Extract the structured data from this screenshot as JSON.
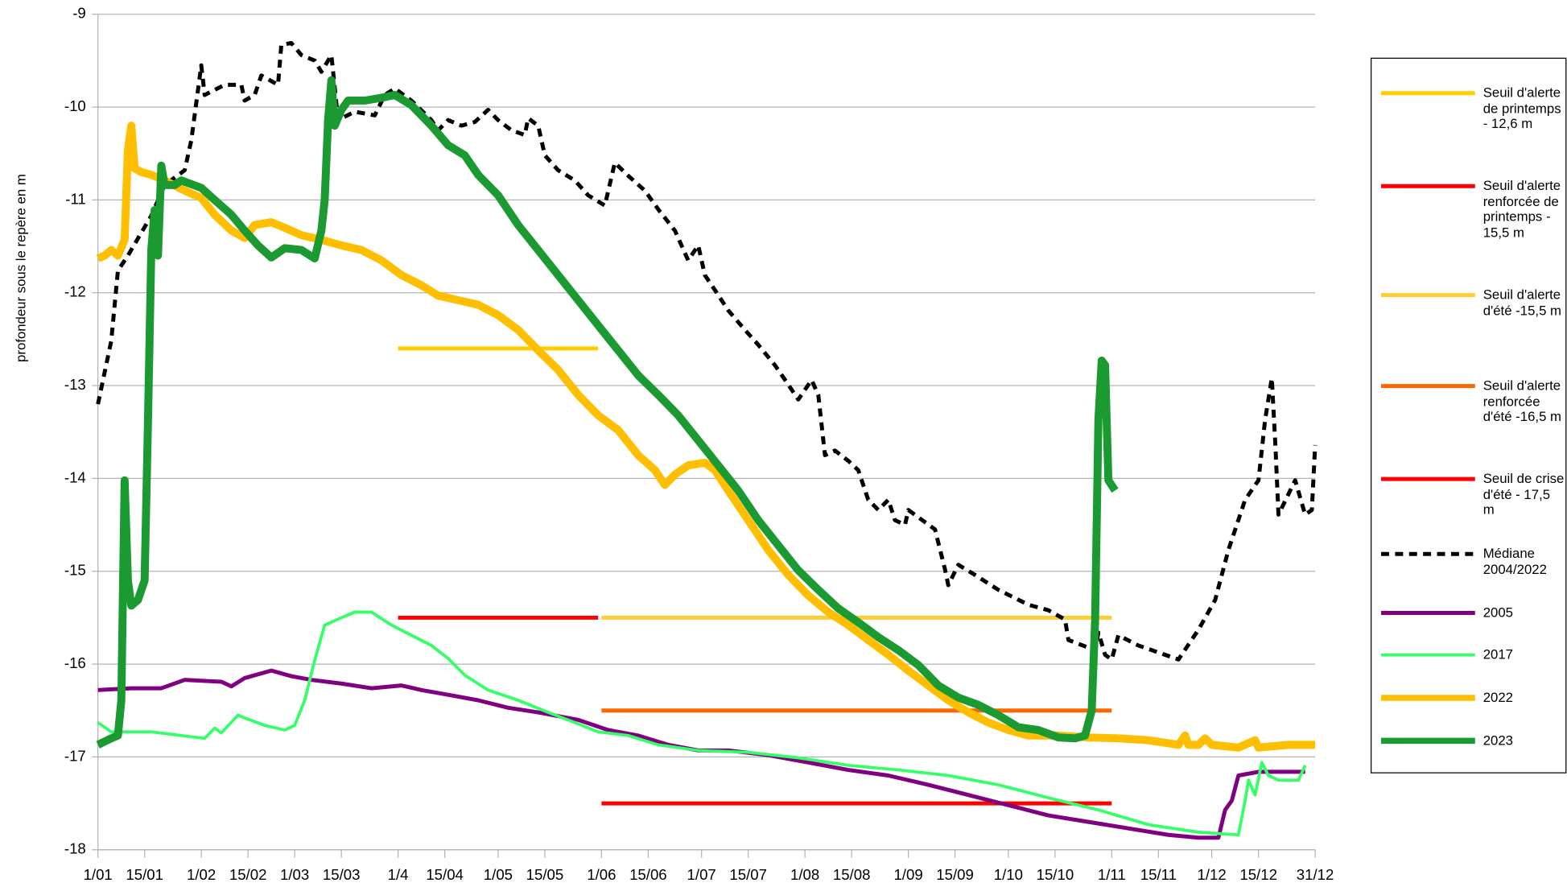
{
  "chart_data": {
    "type": "line",
    "y_label": "profondeur sous le repère en m",
    "xlim": [
      0,
      365
    ],
    "xticks": [
      {
        "value": 0,
        "label": "1/01"
      },
      {
        "value": 14,
        "label": "15/01"
      },
      {
        "value": 31,
        "label": "1/02"
      },
      {
        "value": 45,
        "label": "15/02"
      },
      {
        "value": 59,
        "label": "1/03"
      },
      {
        "value": 73,
        "label": "15/03"
      },
      {
        "value": 90,
        "label": "1/4"
      },
      {
        "value": 104,
        "label": "15/04"
      },
      {
        "value": 120,
        "label": "1/05"
      },
      {
        "value": 134,
        "label": "15/05"
      },
      {
        "value": 151,
        "label": "1/06"
      },
      {
        "value": 165,
        "label": "15/06"
      },
      {
        "value": 181,
        "label": "1/07"
      },
      {
        "value": 195,
        "label": "15/07"
      },
      {
        "value": 212,
        "label": "1/08"
      },
      {
        "value": 226,
        "label": "15/08"
      },
      {
        "value": 243,
        "label": "1/09"
      },
      {
        "value": 257,
        "label": "15/09"
      },
      {
        "value": 273,
        "label": "1/10"
      },
      {
        "value": 287,
        "label": "15/10"
      },
      {
        "value": 304,
        "label": "1/11"
      },
      {
        "value": 318,
        "label": "15/11"
      },
      {
        "value": 334,
        "label": "1/12"
      },
      {
        "value": 348,
        "label": "15/12"
      },
      {
        "value": 365,
        "label": "31/12"
      }
    ],
    "ylim": [
      -18,
      -9
    ],
    "yticks": [
      -18,
      -17,
      -16,
      -15,
      -14,
      -13,
      -12,
      -11,
      -10,
      -9
    ],
    "grid": true,
    "legend": "right",
    "series": [
      {
        "name": "Seuil d'alerte de printemps - 12,6 m",
        "color": "#ffcc00",
        "width": 4,
        "x": [
          90,
          150
        ],
        "values": [
          -12.6,
          -12.6
        ]
      },
      {
        "name": "Seuil d'alerte renforcée de printemps - 15,5 m",
        "color": "#ff0000",
        "width": 4,
        "x": [
          90,
          150
        ],
        "values": [
          -15.5,
          -15.5
        ]
      },
      {
        "name": "Seuil d'alerte d'été -15,5 m",
        "color": "#ffcc33",
        "width": 4,
        "x": [
          151,
          304
        ],
        "values": [
          -15.5,
          -15.5
        ]
      },
      {
        "name": "Seuil d'alerte renforcée d'été -16,5 m",
        "color": "#ff6600",
        "width": 4,
        "x": [
          151,
          304
        ],
        "values": [
          -16.5,
          -16.5
        ]
      },
      {
        "name": "Seuil de crise d'été - 17,5 m",
        "color": "#ff0000",
        "width": 4,
        "x": [
          151,
          304
        ],
        "values": [
          -17.5,
          -17.5
        ]
      },
      {
        "name": "Médiane 2004/2022",
        "color": "#000000",
        "width": 4,
        "dashed": true,
        "x": [
          0,
          4,
          6,
          9,
          16,
          20,
          26,
          28,
          31,
          32,
          38,
          43,
          44,
          47,
          49,
          54,
          55,
          58,
          61,
          65,
          67,
          70,
          72,
          77,
          83,
          86,
          89,
          94,
          100,
          102,
          105,
          109,
          113,
          117,
          120,
          124,
          128,
          129,
          132,
          134,
          138,
          143,
          147,
          152,
          155,
          159,
          164,
          168,
          173,
          177,
          180,
          182,
          185,
          189,
          194,
          198,
          203,
          207,
          210,
          214,
          216,
          218,
          221,
          225,
          228,
          231,
          234,
          237,
          239,
          242,
          243,
          251,
          254,
          255,
          258,
          263,
          270,
          279,
          285,
          290,
          291,
          299,
          300,
          302,
          304,
          306,
          312,
          320,
          324,
          330,
          335,
          339,
          344,
          348,
          350,
          352,
          353,
          354,
          359,
          362,
          364,
          365
        ],
        "values": [
          -13.2,
          -12.52,
          -11.76,
          -11.6,
          -11.17,
          -10.84,
          -10.68,
          -10.36,
          -9.55,
          -9.87,
          -9.76,
          -9.76,
          -9.93,
          -9.87,
          -9.66,
          -9.76,
          -9.33,
          -9.31,
          -9.44,
          -9.5,
          -9.62,
          -9.44,
          -10.14,
          -10.05,
          -10.09,
          -9.87,
          -9.8,
          -9.93,
          -10.14,
          -10.25,
          -10.14,
          -10.2,
          -10.16,
          -10.03,
          -10.14,
          -10.25,
          -10.3,
          -10.12,
          -10.2,
          -10.52,
          -10.68,
          -10.79,
          -10.95,
          -11.06,
          -10.6,
          -10.74,
          -10.9,
          -11.1,
          -11.33,
          -11.65,
          -11.49,
          -11.81,
          -11.97,
          -12.19,
          -12.4,
          -12.56,
          -12.78,
          -12.99,
          -13.15,
          -12.94,
          -13.1,
          -13.75,
          -13.7,
          -13.81,
          -13.91,
          -14.23,
          -14.34,
          -14.23,
          -14.45,
          -14.5,
          -14.34,
          -14.55,
          -14.98,
          -15.15,
          -14.93,
          -15.04,
          -15.2,
          -15.36,
          -15.42,
          -15.52,
          -15.74,
          -15.85,
          -15.66,
          -15.9,
          -15.95,
          -15.69,
          -15.8,
          -15.9,
          -15.95,
          -15.63,
          -15.31,
          -14.77,
          -14.23,
          -14.02,
          -13.37,
          -12.92,
          -13.6,
          -14.39,
          -14.02,
          -14.39,
          -14.34,
          -13.64
        ]
      },
      {
        "name": "2005",
        "color": "#800080",
        "width": 4,
        "x": [
          0,
          10,
          19,
          26,
          37,
          40,
          44,
          52,
          58,
          64,
          73,
          82,
          91,
          97,
          105,
          114,
          123,
          132,
          144,
          153,
          162,
          171,
          180,
          189,
          201,
          213,
          225,
          237,
          249,
          261,
          273,
          285,
          297,
          309,
          321,
          330,
          336,
          338,
          340,
          342,
          348,
          362
        ],
        "values": [
          -16.28,
          -16.26,
          -16.26,
          -16.17,
          -16.19,
          -16.24,
          -16.15,
          -16.07,
          -16.13,
          -16.17,
          -16.21,
          -16.26,
          -16.23,
          -16.28,
          -16.33,
          -16.39,
          -16.47,
          -16.52,
          -16.6,
          -16.71,
          -16.77,
          -16.87,
          -16.93,
          -16.93,
          -16.98,
          -17.06,
          -17.14,
          -17.2,
          -17.3,
          -17.41,
          -17.52,
          -17.63,
          -17.7,
          -17.77,
          -17.84,
          -17.87,
          -17.87,
          -17.57,
          -17.47,
          -17.2,
          -17.16,
          -17.16
        ]
      },
      {
        "name": "2017",
        "color": "#33ff66",
        "width": 3,
        "x": [
          0,
          4,
          16,
          25,
          32,
          35,
          37,
          42,
          44,
          50,
          56,
          59,
          62,
          65,
          68,
          73,
          77,
          82,
          88,
          94,
          100,
          105,
          110,
          117,
          126,
          135,
          143,
          150,
          159,
          168,
          180,
          195,
          210,
          225,
          240,
          255,
          270,
          285,
          300,
          315,
          330,
          342,
          344,
          345,
          347,
          349,
          351,
          354,
          360,
          362
        ],
        "values": [
          -16.63,
          -16.73,
          -16.73,
          -16.77,
          -16.8,
          -16.69,
          -16.74,
          -16.55,
          -16.58,
          -16.66,
          -16.71,
          -16.66,
          -16.39,
          -15.96,
          -15.58,
          -15.5,
          -15.44,
          -15.44,
          -15.58,
          -15.69,
          -15.8,
          -15.94,
          -16.12,
          -16.28,
          -16.39,
          -16.52,
          -16.63,
          -16.73,
          -16.77,
          -16.87,
          -16.93,
          -16.95,
          -17.01,
          -17.09,
          -17.14,
          -17.2,
          -17.3,
          -17.44,
          -17.57,
          -17.73,
          -17.81,
          -17.84,
          -17.47,
          -17.25,
          -17.41,
          -17.06,
          -17.2,
          -17.25,
          -17.25,
          -17.09
        ]
      },
      {
        "name": "2022",
        "color": "#ffbf00",
        "width": 8,
        "x": [
          0,
          2,
          4,
          6,
          8,
          9,
          10,
          11,
          13,
          16,
          20,
          26,
          31,
          35,
          40,
          44,
          47,
          52,
          56,
          61,
          67,
          73,
          79,
          85,
          91,
          97,
          102,
          108,
          114,
          120,
          126,
          132,
          138,
          144,
          150,
          156,
          162,
          167,
          170,
          173,
          177,
          182,
          185,
          189,
          195,
          201,
          207,
          213,
          219,
          225,
          231,
          237,
          243,
          249,
          255,
          261,
          267,
          273,
          279,
          288,
          297,
          306,
          315,
          324,
          326,
          327,
          330,
          332,
          334,
          342,
          347,
          348,
          357,
          365
        ],
        "values": [
          -11.63,
          -11.6,
          -11.54,
          -11.6,
          -11.43,
          -10.46,
          -10.2,
          -10.66,
          -10.7,
          -10.73,
          -10.79,
          -10.9,
          -10.98,
          -11.16,
          -11.33,
          -11.41,
          -11.27,
          -11.24,
          -11.3,
          -11.38,
          -11.43,
          -11.49,
          -11.54,
          -11.65,
          -11.81,
          -11.92,
          -12.03,
          -12.08,
          -12.13,
          -12.24,
          -12.4,
          -12.62,
          -12.83,
          -13.1,
          -13.32,
          -13.48,
          -13.75,
          -13.91,
          -14.07,
          -13.96,
          -13.86,
          -13.83,
          -13.91,
          -14.13,
          -14.45,
          -14.77,
          -15.04,
          -15.26,
          -15.44,
          -15.58,
          -15.74,
          -15.9,
          -16.07,
          -16.23,
          -16.39,
          -16.52,
          -16.63,
          -16.71,
          -16.77,
          -16.77,
          -16.79,
          -16.8,
          -16.82,
          -16.87,
          -16.77,
          -16.87,
          -16.87,
          -16.8,
          -16.87,
          -16.9,
          -16.82,
          -16.9,
          -16.87,
          -16.87
        ]
      },
      {
        "name": "2023",
        "color": "#1a9a30",
        "width": 8,
        "x": [
          0,
          4,
          6,
          7,
          8,
          9,
          10,
          12,
          14,
          15,
          16,
          17,
          18,
          19,
          20,
          23,
          25,
          31,
          35,
          40,
          44,
          48,
          52,
          56,
          61,
          65,
          67,
          68,
          69,
          70,
          71,
          73,
          75,
          80,
          85,
          89,
          94,
          100,
          105,
          110,
          114,
          120,
          126,
          132,
          138,
          144,
          150,
          156,
          162,
          168,
          174,
          180,
          186,
          192,
          198,
          204,
          210,
          216,
          222,
          228,
          234,
          240,
          246,
          252,
          258,
          264,
          270,
          276,
          282,
          288,
          293,
          296,
          298,
          299,
          300,
          301,
          302,
          303,
          305
        ],
        "values": [
          -16.87,
          -16.8,
          -16.77,
          -16.39,
          -14.02,
          -15.1,
          -15.37,
          -15.31,
          -15.1,
          -13.37,
          -11.54,
          -11.11,
          -11.6,
          -10.63,
          -10.84,
          -10.84,
          -10.79,
          -10.87,
          -11.0,
          -11.16,
          -11.33,
          -11.49,
          -11.62,
          -11.52,
          -11.54,
          -11.63,
          -11.33,
          -11.0,
          -10.14,
          -9.71,
          -10.2,
          -10.03,
          -9.93,
          -9.93,
          -9.9,
          -9.87,
          -9.98,
          -10.2,
          -10.41,
          -10.52,
          -10.73,
          -10.95,
          -11.27,
          -11.54,
          -11.81,
          -12.08,
          -12.35,
          -12.62,
          -12.89,
          -13.1,
          -13.32,
          -13.59,
          -13.86,
          -14.13,
          -14.45,
          -14.72,
          -14.99,
          -15.2,
          -15.4,
          -15.55,
          -15.71,
          -15.85,
          -16.01,
          -16.23,
          -16.36,
          -16.44,
          -16.55,
          -16.68,
          -16.71,
          -16.79,
          -16.8,
          -16.77,
          -16.5,
          -15.53,
          -13.37,
          -12.73,
          -12.78,
          -14.02,
          -14.13
        ]
      }
    ]
  }
}
